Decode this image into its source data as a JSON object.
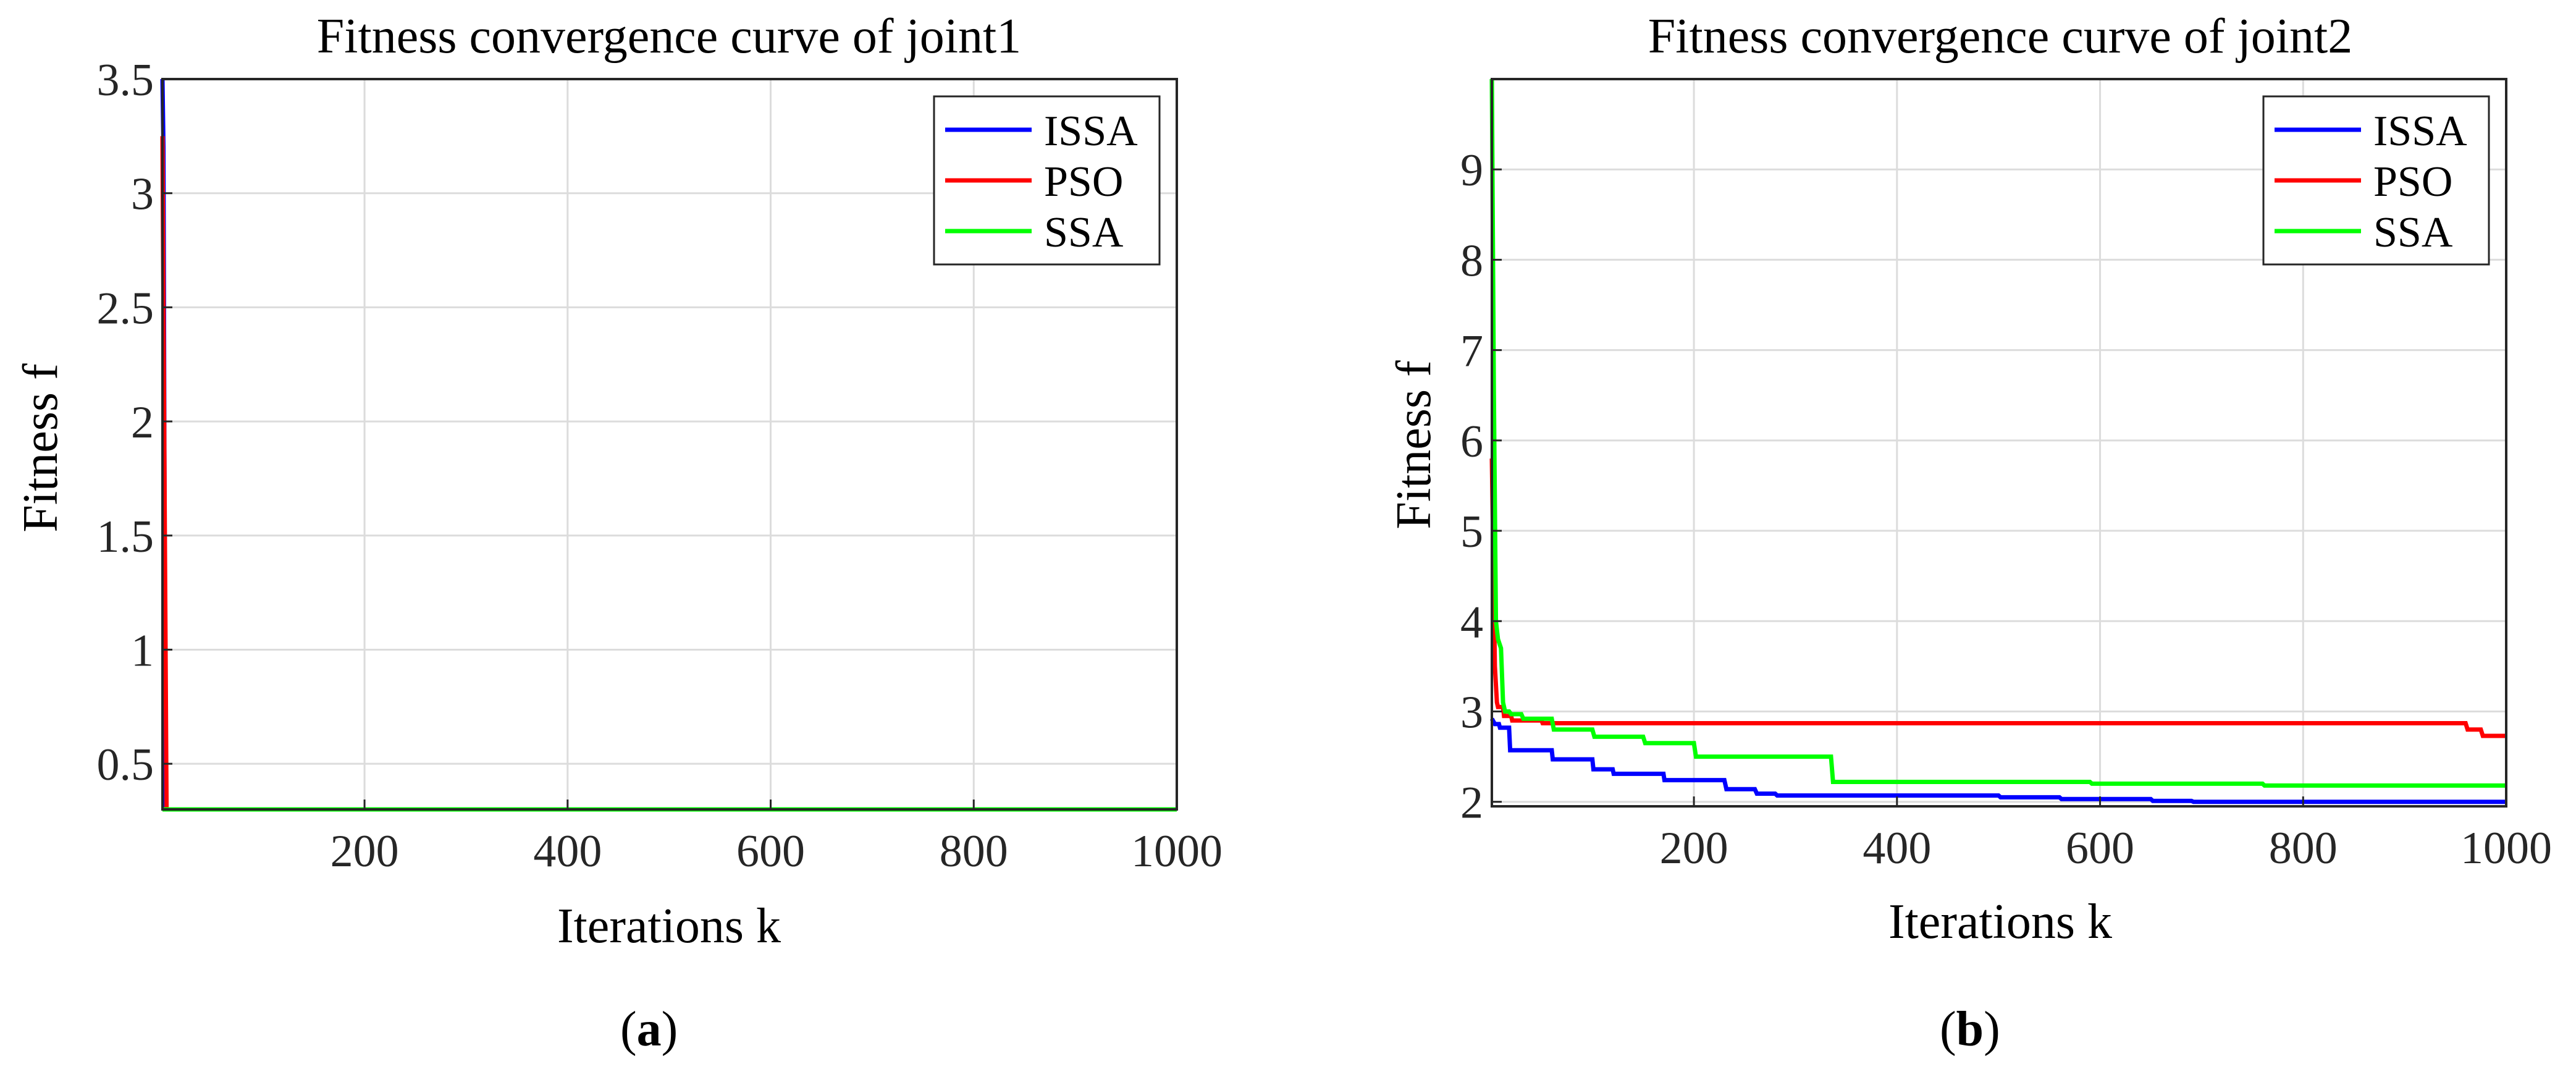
{
  "chart_data": [
    {
      "type": "line",
      "title": "Fitness convergence curve of joint1",
      "xlabel": "Iterations k",
      "ylabel": "Fitness f",
      "xlim": [
        1,
        1000
      ],
      "ylim": [
        0.3,
        3.5
      ],
      "xticks": [
        200,
        400,
        600,
        800,
        1000
      ],
      "yticks": [
        0.5,
        1,
        1.5,
        2,
        2.5,
        3,
        3.5
      ],
      "ytick_labels": [
        "0.5",
        "1",
        "1.5",
        "2",
        "2.5",
        "3",
        "3.5"
      ],
      "grid": true,
      "legend_position": "top-right",
      "panel_label": "a",
      "series": [
        {
          "name": "ISSA",
          "color": "#0000ff",
          "x": [
            1,
            2,
            4,
            1000
          ],
          "y": [
            3.5,
            3.2,
            0.3,
            0.3
          ]
        },
        {
          "name": "PSO",
          "color": "#ff0000",
          "x": [
            1,
            2,
            5,
            1000
          ],
          "y": [
            3.25,
            2.5,
            0.3,
            0.3
          ]
        },
        {
          "name": "SSA",
          "color": "#00ff00",
          "x": [
            1,
            1000
          ],
          "y": [
            0.3,
            0.3
          ]
        }
      ]
    },
    {
      "type": "line",
      "title": "Fitness convergence curve of joint2",
      "xlabel": "Iterations k",
      "ylabel": "Fitness f",
      "xlim": [
        1,
        1000
      ],
      "ylim": [
        1.95,
        10
      ],
      "xticks": [
        200,
        400,
        600,
        800,
        1000
      ],
      "yticks": [
        2,
        3,
        4,
        5,
        6,
        7,
        8,
        9
      ],
      "ytick_labels": [
        "2",
        "3",
        "4",
        "5",
        "6",
        "7",
        "8",
        "9"
      ],
      "grid": true,
      "legend_position": "top-right",
      "panel_label": "b",
      "series": [
        {
          "name": "ISSA",
          "color": "#0000ff",
          "x": [
            1,
            3,
            4,
            8,
            9,
            18,
            19,
            60,
            61,
            100,
            101,
            120,
            121,
            170,
            171,
            230,
            232,
            260,
            262,
            280,
            282,
            500,
            502,
            560,
            562,
            650,
            652,
            690,
            692,
            1000
          ],
          "y": [
            2.92,
            2.88,
            2.86,
            2.86,
            2.82,
            2.82,
            2.57,
            2.57,
            2.47,
            2.47,
            2.36,
            2.36,
            2.31,
            2.31,
            2.24,
            2.24,
            2.14,
            2.14,
            2.09,
            2.09,
            2.07,
            2.07,
            2.05,
            2.05,
            2.03,
            2.03,
            2.01,
            2.01,
            2.0,
            2.0
          ]
        },
        {
          "name": "PSO",
          "color": "#ff0000",
          "x": [
            1,
            4,
            6,
            7,
            12,
            13,
            20,
            21,
            50,
            51,
            960,
            962,
            975,
            977,
            1000
          ],
          "y": [
            5.8,
            3.5,
            3.1,
            3.05,
            3.05,
            2.95,
            2.95,
            2.9,
            2.9,
            2.87,
            2.87,
            2.8,
            2.8,
            2.73,
            2.73
          ]
        },
        {
          "name": "SSA",
          "color": "#00ff00",
          "x": [
            1,
            3,
            5,
            7,
            10,
            12,
            14,
            18,
            20,
            30,
            32,
            60,
            62,
            100,
            102,
            150,
            152,
            200,
            202,
            335,
            337,
            590,
            592,
            760,
            762,
            1000
          ],
          "y": [
            10,
            6.5,
            4.0,
            3.8,
            3.7,
            3.1,
            3.0,
            3.0,
            2.97,
            2.97,
            2.92,
            2.92,
            2.8,
            2.8,
            2.72,
            2.72,
            2.65,
            2.65,
            2.5,
            2.5,
            2.22,
            2.22,
            2.2,
            2.2,
            2.18,
            2.18
          ]
        }
      ]
    }
  ]
}
